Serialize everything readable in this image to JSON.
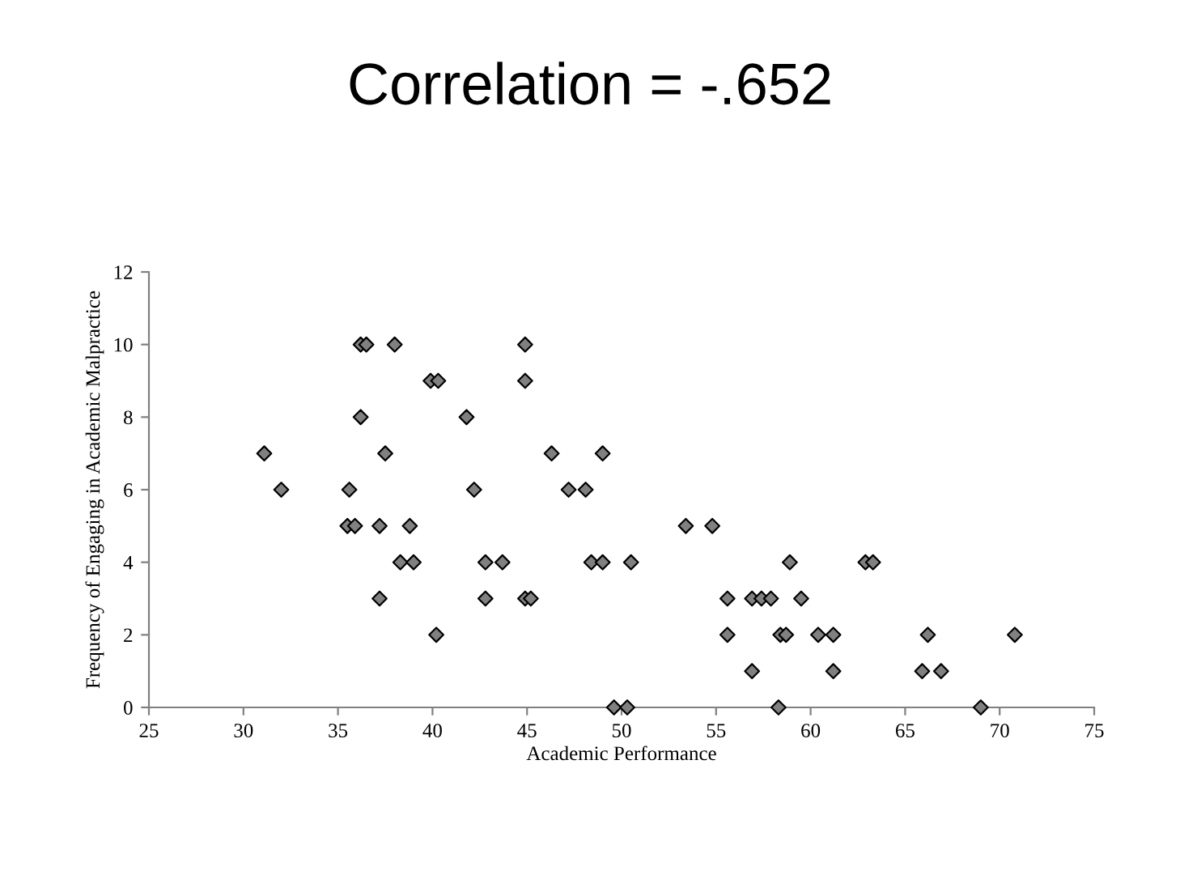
{
  "chart_data": {
    "type": "scatter",
    "title": "Correlation = -.652",
    "xlabel": "Academic Performance",
    "ylabel": "Frequency of Engaging in Academic Malpractice",
    "x": [
      36.2,
      36.5,
      38.0,
      44.9,
      39.9,
      40.3,
      44.9,
      36.2,
      41.8,
      31.1,
      37.5,
      46.3,
      49.0,
      32.0,
      35.6,
      42.2,
      47.2,
      48.1,
      35.5,
      35.9,
      37.2,
      38.8,
      38.3,
      39.0,
      42.8,
      43.7,
      48.4,
      49.0,
      50.5,
      37.2,
      42.8,
      44.9,
      45.2,
      40.2,
      49.6,
      50.3,
      53.4,
      54.8,
      58.9,
      62.9,
      63.3,
      55.6,
      56.9,
      57.4,
      57.9,
      59.5,
      55.6,
      58.4,
      58.7,
      60.4,
      61.2,
      66.2,
      70.8,
      56.9,
      61.2,
      65.9,
      66.9,
      58.3,
      69.0
    ],
    "series": [
      {
        "color": "#808080",
        "values": [
          10,
          10,
          10,
          10,
          9,
          9,
          9,
          8,
          8,
          7,
          7,
          7,
          7,
          6,
          6,
          6,
          6,
          6,
          5,
          5,
          5,
          5,
          4,
          4,
          4,
          4,
          4,
          4,
          4,
          3,
          3,
          3,
          3,
          2,
          0,
          0,
          5,
          5,
          4,
          4,
          4,
          3,
          3,
          3,
          3,
          3,
          2,
          2,
          2,
          2,
          2,
          2,
          2,
          1,
          1,
          1,
          1,
          0,
          0
        ]
      }
    ],
    "xlim": [
      25,
      75
    ],
    "xticks": [
      25,
      30,
      35,
      40,
      45,
      50,
      55,
      60,
      65,
      70,
      75
    ],
    "ylim": [
      0,
      12
    ],
    "yticks": [
      0,
      2,
      4,
      6,
      8,
      10,
      12
    ],
    "marker": "diamond",
    "grid": false,
    "legend": false
  }
}
